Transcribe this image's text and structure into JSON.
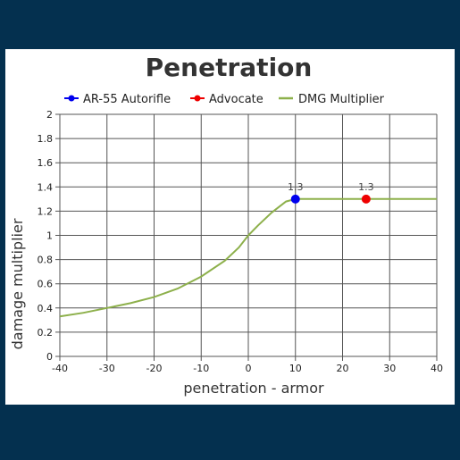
{
  "colors": {
    "background": "#04304f",
    "card": "#ffffff",
    "grid": "#555555",
    "ar55": "#0000ee",
    "advocate": "#ee0000",
    "multiplier": "#8db04b"
  },
  "chart_data": {
    "type": "line",
    "title": "Penetration",
    "xlabel": "penetration - armor",
    "ylabel": "damage multiplier",
    "xlim": [
      -40,
      40
    ],
    "ylim": [
      0,
      2
    ],
    "x_ticks": [
      "-40",
      "-30",
      "-20",
      "-10",
      "0",
      "10",
      "20",
      "30",
      "40"
    ],
    "y_ticks": [
      "0",
      "0.2",
      "0.4",
      "0.6",
      "0.8",
      "1",
      "1.2",
      "1.4",
      "1.6",
      "1.8",
      "2"
    ],
    "grid": true,
    "legend_position": "top",
    "legend": [
      "AR-55 Autorifle",
      "Advocate",
      "DMG Multiplier"
    ],
    "series": [
      {
        "name": "AR-55 Autorifle",
        "points": [
          {
            "x": 10,
            "y": 1.3,
            "label": "1.3"
          }
        ]
      },
      {
        "name": "Advocate",
        "points": [
          {
            "x": 25,
            "y": 1.3,
            "label": "1.3"
          }
        ]
      },
      {
        "name": "DMG Multiplier",
        "points": [
          {
            "x": -40,
            "y": 0.33
          },
          {
            "x": -35,
            "y": 0.36
          },
          {
            "x": -30,
            "y": 0.4
          },
          {
            "x": -25,
            "y": 0.44
          },
          {
            "x": -20,
            "y": 0.49
          },
          {
            "x": -15,
            "y": 0.56
          },
          {
            "x": -10,
            "y": 0.66
          },
          {
            "x": -5,
            "y": 0.79
          },
          {
            "x": -2,
            "y": 0.9
          },
          {
            "x": 0,
            "y": 1.0
          },
          {
            "x": 2,
            "y": 1.08
          },
          {
            "x": 5,
            "y": 1.19
          },
          {
            "x": 8,
            "y": 1.28
          },
          {
            "x": 10,
            "y": 1.3
          },
          {
            "x": 15,
            "y": 1.3
          },
          {
            "x": 20,
            "y": 1.3
          },
          {
            "x": 25,
            "y": 1.3
          },
          {
            "x": 30,
            "y": 1.3
          },
          {
            "x": 35,
            "y": 1.3
          },
          {
            "x": 40,
            "y": 1.3
          }
        ]
      }
    ]
  }
}
